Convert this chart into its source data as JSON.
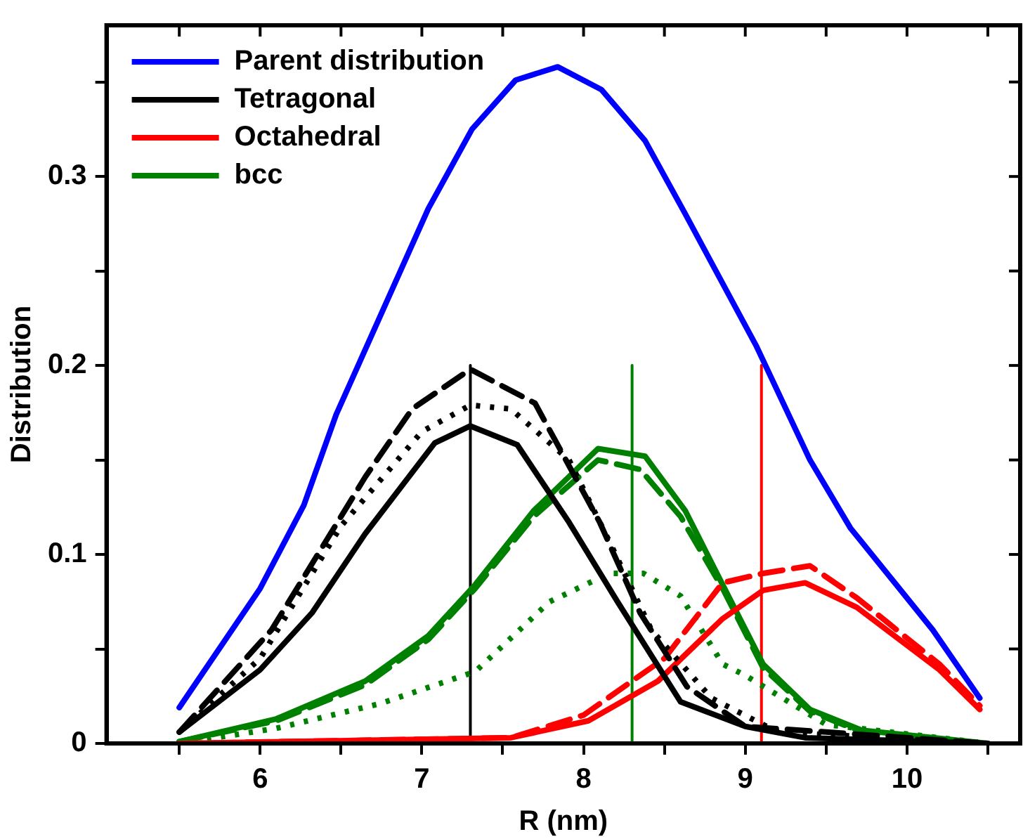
{
  "chart_data": {
    "type": "line",
    "xlabel": "R (nm)",
    "ylabel": "Distribution",
    "legend": "top left",
    "xlim": [
      5.05,
      10.7
    ],
    "ylim": [
      0,
      0.38
    ],
    "xticks": [
      {
        "value": 5.5,
        "label": null
      },
      6,
      {
        "value": 6.5,
        "label": null
      },
      7,
      {
        "value": 7.5,
        "label": null
      },
      8,
      {
        "value": 8.5,
        "label": null
      },
      9,
      {
        "value": 9.5,
        "label": null
      },
      10,
      {
        "value": 10.5,
        "label": null
      }
    ],
    "yticks": [
      0,
      {
        "value": 0.05,
        "label": null
      },
      0.1,
      {
        "value": 0.15,
        "label": null
      },
      0.2,
      {
        "value": 0.25,
        "label": null
      },
      0.3,
      {
        "value": 0.35,
        "label": null
      }
    ],
    "series": [
      {
        "name": "Parent distribution",
        "color": "#0000ff",
        "line_style": "solid",
        "x": [
          5.5,
          6.0,
          6.27,
          6.47,
          7.04,
          7.31,
          7.58,
          7.84,
          8.11,
          8.38,
          8.63,
          9.07,
          9.4,
          9.65,
          10.16,
          10.45
        ],
        "values": [
          0.019,
          0.082,
          0.126,
          0.174,
          0.283,
          0.325,
          0.351,
          0.358,
          0.346,
          0.319,
          0.28,
          0.21,
          0.15,
          0.114,
          0.06,
          0.024
        ]
      },
      {
        "name": "Tetragonal",
        "color": "#000000",
        "line_style": "solid",
        "x": [
          5.5,
          6.0,
          6.32,
          6.65,
          7.08,
          7.3,
          7.59,
          7.91,
          8.21,
          8.6,
          9.0,
          9.37,
          10.5
        ],
        "values": [
          0.006,
          0.039,
          0.069,
          0.111,
          0.159,
          0.168,
          0.158,
          0.117,
          0.075,
          0.022,
          0.009,
          0.003,
          0
        ]
      },
      {
        "color": "#000000",
        "line_style": "dashed",
        "x": [
          5.5,
          6.07,
          6.65,
          6.94,
          7.3,
          7.7,
          8.1,
          8.35,
          8.64,
          9.0,
          10.5
        ],
        "values": [
          0.006,
          0.06,
          0.141,
          0.177,
          0.198,
          0.18,
          0.117,
          0.069,
          0.03,
          0.009,
          0
        ]
      },
      {
        "color": "#000000",
        "line_style": "dotted",
        "x": [
          5.5,
          6.0,
          6.5,
          7.0,
          7.3,
          7.55,
          7.91,
          8.17,
          8.42,
          8.79,
          9.2,
          10.5
        ],
        "values": [
          0.006,
          0.045,
          0.115,
          0.165,
          0.179,
          0.177,
          0.15,
          0.105,
          0.06,
          0.024,
          0.006,
          0
        ]
      },
      {
        "name": "Octahedral",
        "color": "#ff0000",
        "line_style": "solid",
        "x": [
          5.5,
          7.55,
          8.03,
          8.46,
          8.86,
          9.11,
          9.37,
          9.69,
          10.2,
          10.45
        ],
        "values": [
          0,
          0.003,
          0.012,
          0.033,
          0.066,
          0.081,
          0.085,
          0.072,
          0.039,
          0.018
        ]
      },
      {
        "color": "#ff0000",
        "line_style": "dashed",
        "x": [
          5.5,
          7.55,
          8.0,
          8.5,
          8.86,
          9.11,
          9.4,
          9.69,
          10.2,
          10.45
        ],
        "values": [
          0,
          0.003,
          0.015,
          0.045,
          0.085,
          0.09,
          0.094,
          0.077,
          0.042,
          0.02
        ]
      },
      {
        "name": "bcc",
        "color": "#008000",
        "line_style": "solid",
        "x": [
          5.5,
          6.1,
          6.65,
          7.04,
          7.33,
          7.69,
          8.09,
          8.38,
          8.63,
          8.86,
          9.11,
          9.4,
          9.72,
          10.5
        ],
        "values": [
          0.001,
          0.013,
          0.033,
          0.057,
          0.084,
          0.123,
          0.156,
          0.152,
          0.123,
          0.084,
          0.042,
          0.018,
          0.007,
          0
        ]
      },
      {
        "color": "#008000",
        "line_style": "dashed",
        "x": [
          5.5,
          6.1,
          6.65,
          7.04,
          7.33,
          7.69,
          8.09,
          8.35,
          8.6,
          8.86,
          9.11,
          9.4,
          9.72,
          10.5
        ],
        "values": [
          0.001,
          0.012,
          0.031,
          0.055,
          0.082,
          0.12,
          0.15,
          0.145,
          0.12,
          0.082,
          0.04,
          0.017,
          0.006,
          0
        ]
      },
      {
        "color": "#008000",
        "line_style": "dotted",
        "x": [
          5.5,
          6.1,
          6.74,
          7.33,
          7.79,
          8.16,
          8.37,
          8.6,
          8.86,
          9.0,
          9.5,
          10.5
        ],
        "values": [
          0,
          0.008,
          0.021,
          0.038,
          0.075,
          0.09,
          0.09,
          0.078,
          0.042,
          0.036,
          0.01,
          0
        ]
      },
      {
        "color": "#000000",
        "line_style": "solid",
        "x": [
          7.3,
          7.3
        ],
        "values": [
          0,
          0.2
        ]
      },
      {
        "color": "#008000",
        "line_style": "solid",
        "x": [
          8.3,
          8.3
        ],
        "values": [
          0,
          0.2
        ]
      },
      {
        "color": "#ff0000",
        "line_style": "solid",
        "x": [
          9.1,
          9.1
        ],
        "values": [
          0,
          0.2
        ]
      }
    ]
  }
}
